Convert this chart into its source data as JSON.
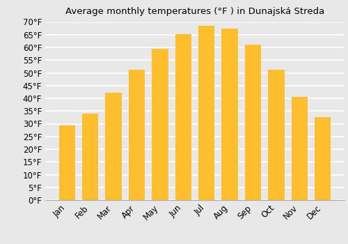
{
  "title": "Average monthly temperatures (°F ) in Dunajská Streda",
  "months": [
    "Jan",
    "Feb",
    "Mar",
    "Apr",
    "May",
    "Jun",
    "Jul",
    "Aug",
    "Sep",
    "Oct",
    "Nov",
    "Dec"
  ],
  "values": [
    29.3,
    34.0,
    42.1,
    51.3,
    59.4,
    65.3,
    68.4,
    67.5,
    61.0,
    51.3,
    40.6,
    32.5
  ],
  "bar_color_top": "#FFC72C",
  "bar_color_bottom": "#F5A623",
  "bar_edge_color": "none",
  "background_color": "#e8e8e8",
  "grid_color": "#ffffff",
  "ylim": [
    0,
    70
  ],
  "yticks": [
    0,
    5,
    10,
    15,
    20,
    25,
    30,
    35,
    40,
    45,
    50,
    55,
    60,
    65,
    70
  ],
  "title_fontsize": 9.5,
  "tick_fontsize": 8.5,
  "ylabel_format": "°F"
}
